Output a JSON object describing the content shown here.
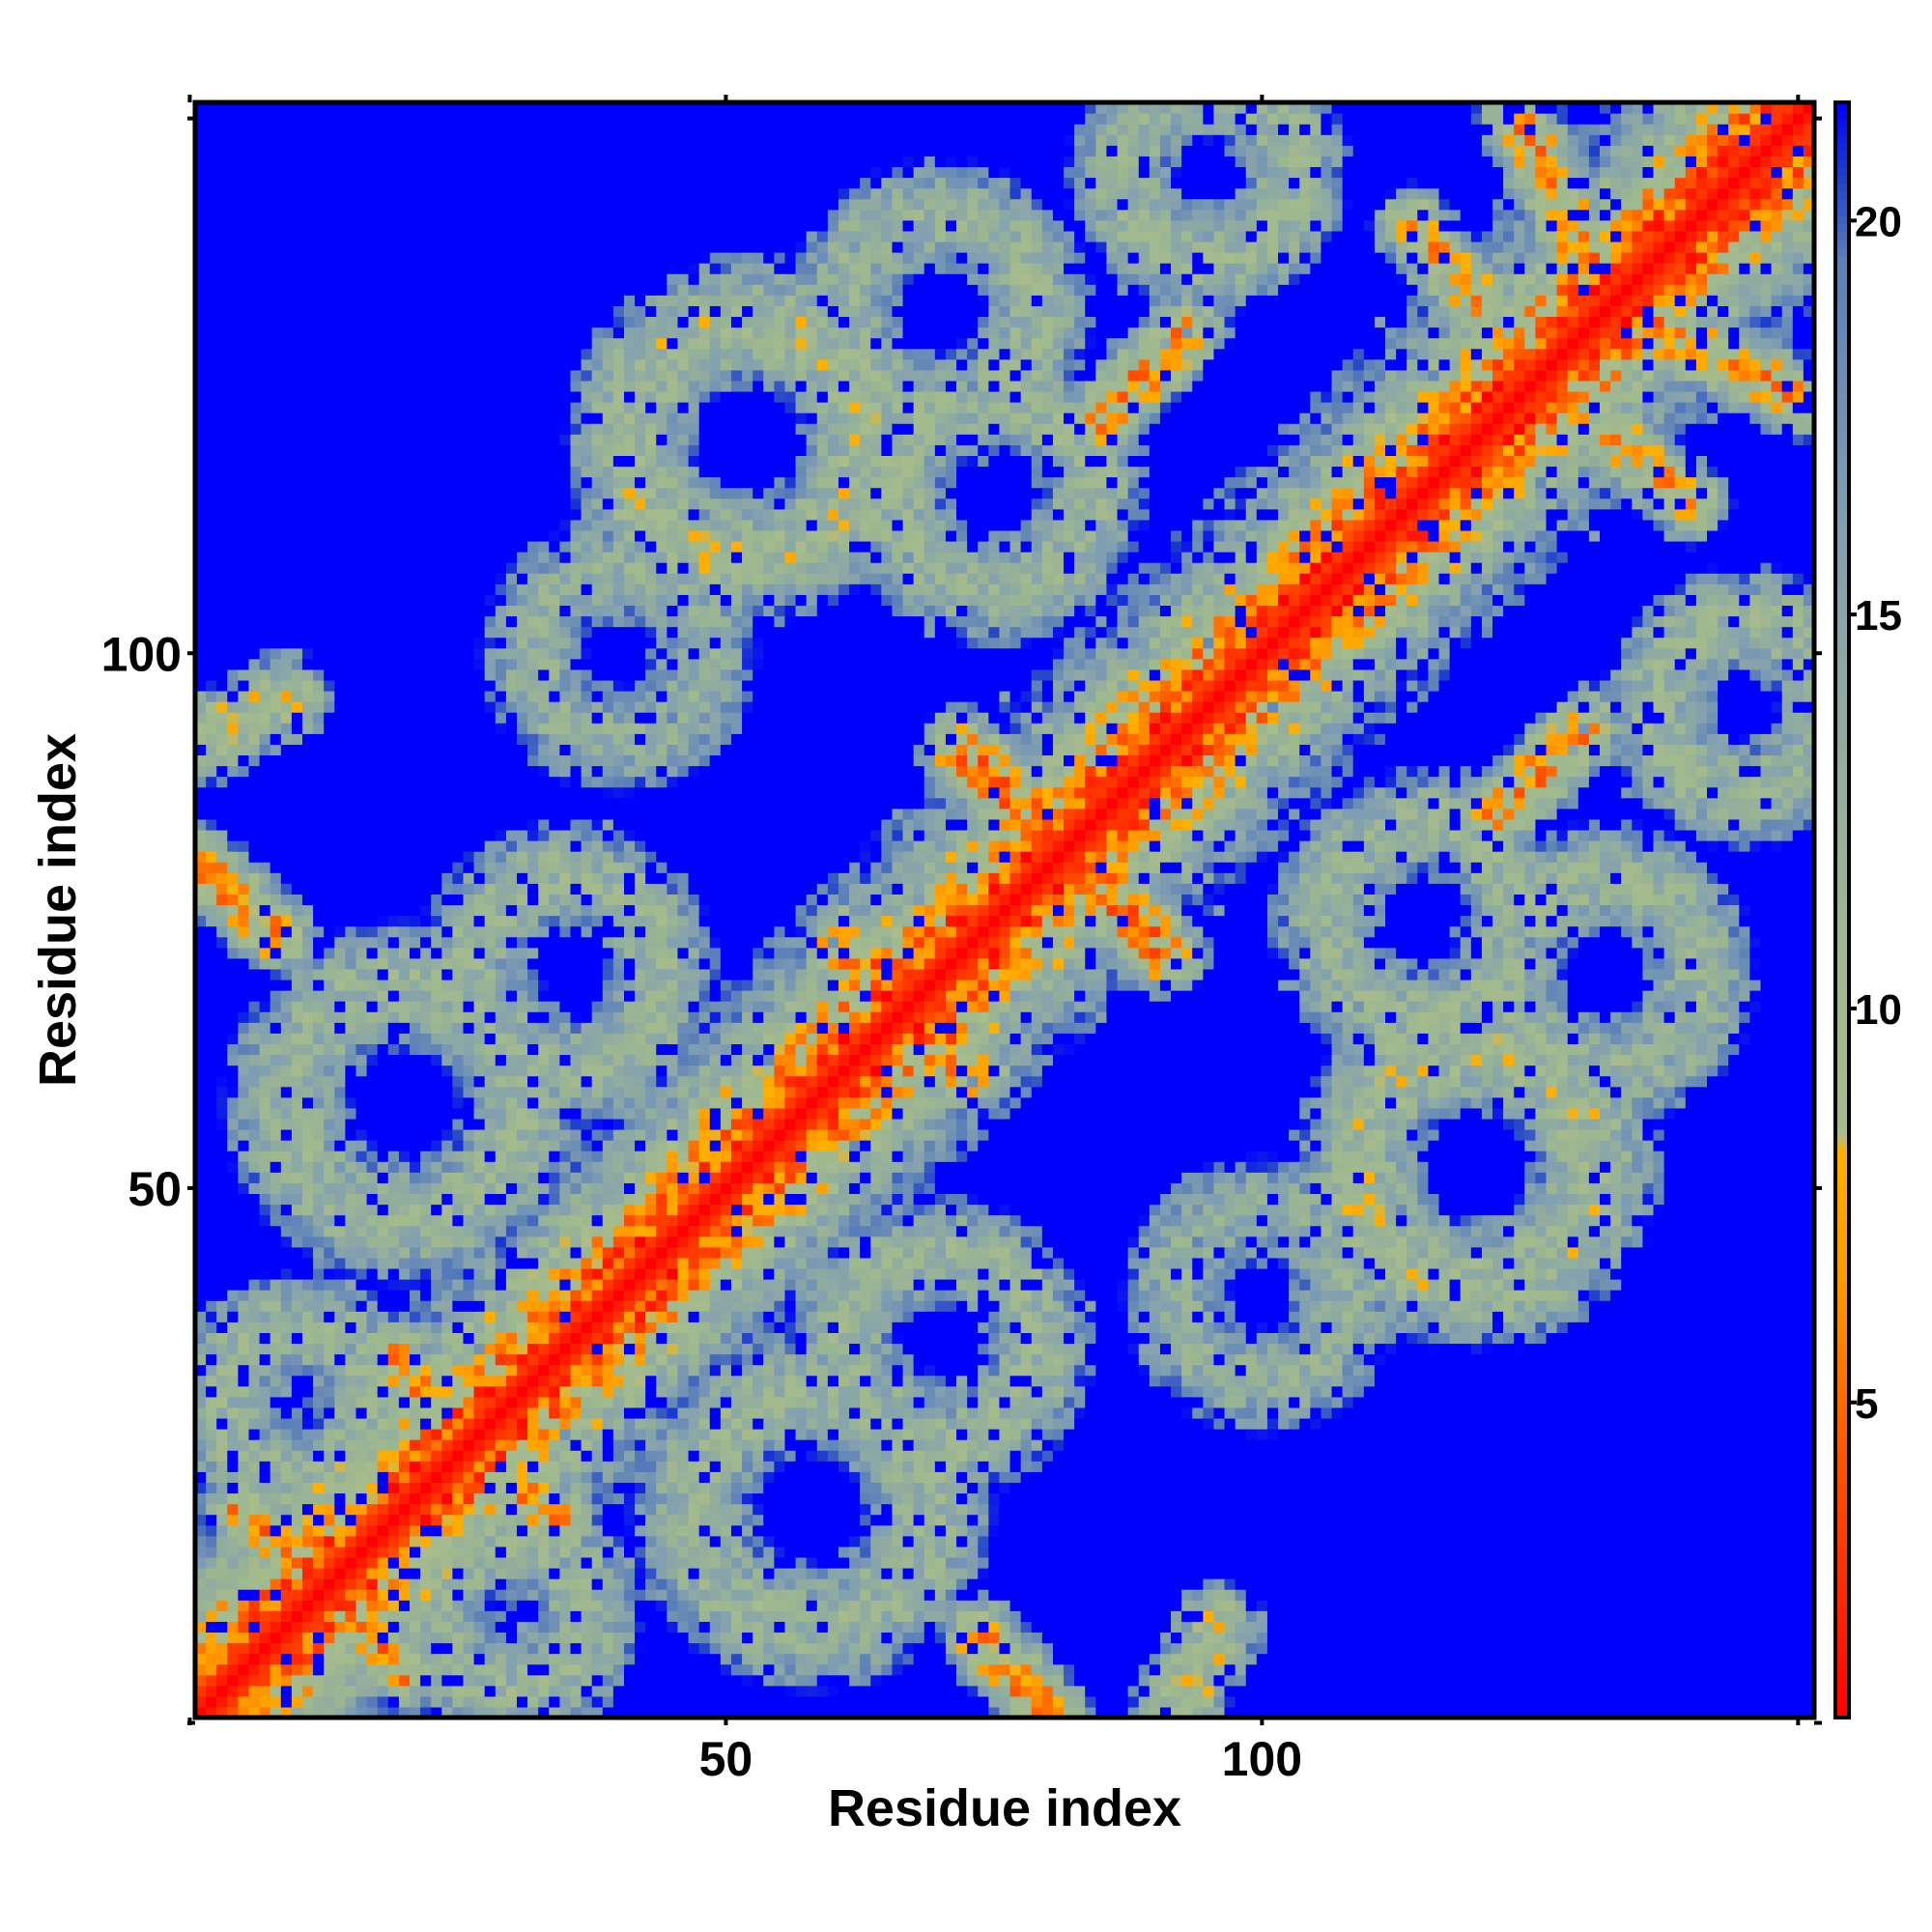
{
  "chart_data": {
    "type": "heatmap",
    "title": "",
    "xlabel": "Residue index",
    "ylabel": "Residue index",
    "n_residues": 151,
    "xlim": [
      0.5,
      151.5
    ],
    "ylim": [
      0.5,
      151.5
    ],
    "x_ticks": [
      50,
      100
    ],
    "y_ticks": [
      50,
      100
    ],
    "colorbar": {
      "min": 1,
      "max": 21.5,
      "ticks": [
        5,
        10,
        15,
        20
      ],
      "stops": [
        {
          "value": 1,
          "color": "#ff0000"
        },
        {
          "value": 4.5,
          "color": "#ff5a00"
        },
        {
          "value": 6.5,
          "color": "#ff9800"
        },
        {
          "value": 8.2,
          "color": "#ffb000"
        },
        {
          "value": 8.4,
          "color": "#a8bc8c"
        },
        {
          "value": 11,
          "color": "#9db790"
        },
        {
          "value": 16,
          "color": "#83a0b0"
        },
        {
          "value": 19.5,
          "color": "#5b7fb8"
        },
        {
          "value": 20.6,
          "color": "#1d3dcc"
        },
        {
          "value": 21.5,
          "color": "#0000ff"
        }
      ]
    },
    "cap_value": 21,
    "features": [
      {
        "kind": "band",
        "p": [
          1,
          1
        ],
        "q": [
          151,
          151
        ],
        "value": 1,
        "sigma": 0.8
      },
      {
        "kind": "band",
        "p": [
          40,
          40
        ],
        "q": [
          57,
          57
        ],
        "value": 5,
        "sigma": 3.2
      },
      {
        "kind": "band",
        "p": [
          96,
          96
        ],
        "q": [
          117,
          117
        ],
        "value": 5,
        "sigma": 3.2
      },
      {
        "kind": "band",
        "p": [
          72,
          91
        ],
        "q": [
          93,
          72
        ],
        "value": 6,
        "sigma": 1.4
      },
      {
        "kind": "band",
        "p": [
          61,
          73
        ],
        "q": [
          71,
          63
        ],
        "value": 6,
        "sigma": 1.4
      },
      {
        "kind": "band",
        "p": [
          5,
          20
        ],
        "q": [
          12,
          12
        ],
        "value": 7,
        "sigma": 1.4
      },
      {
        "kind": "band",
        "p": [
          12,
          12
        ],
        "q": [
          20,
          4
        ],
        "value": 7,
        "sigma": 1.4
      },
      {
        "kind": "band",
        "p": [
          19,
          34
        ],
        "q": [
          34,
          20
        ],
        "value": 7,
        "sigma": 1.4
      },
      {
        "kind": "band",
        "p": [
          1,
          80
        ],
        "q": [
          8,
          74
        ],
        "value": 7,
        "sigma": 1.4
      },
      {
        "kind": "band",
        "p": [
          74,
          8
        ],
        "q": [
          81,
          1
        ],
        "value": 7,
        "sigma": 1.4
      },
      {
        "kind": "band",
        "p": [
          85,
          122
        ],
        "q": [
          93,
          130
        ],
        "value": 7,
        "sigma": 1.4
      },
      {
        "kind": "band",
        "p": [
          122,
          85
        ],
        "q": [
          130,
          93
        ],
        "value": 7,
        "sigma": 1.4
      },
      {
        "kind": "band",
        "p": [
          124,
          150
        ],
        "q": [
          132,
          133
        ],
        "value": 7,
        "sigma": 1.4
      },
      {
        "kind": "band",
        "p": [
          133,
          132
        ],
        "q": [
          150,
          124
        ],
        "value": 7,
        "sigma": 1.4
      },
      {
        "kind": "band",
        "p": [
          114,
          140
        ],
        "q": [
          121,
          132
        ],
        "value": 8,
        "sigma": 1.4
      },
      {
        "kind": "band",
        "p": [
          1,
          92
        ],
        "q": [
          9,
          96
        ],
        "value": 10,
        "sigma": 1.8
      },
      {
        "kind": "band",
        "p": [
          90,
          9
        ],
        "q": [
          95,
          1
        ],
        "value": 10,
        "sigma": 1.8
      },
      {
        "kind": "arc",
        "c": [
          52,
          120
        ],
        "r": 11,
        "value": 11,
        "w": 4
      },
      {
        "kind": "arc",
        "c": [
          70,
          132
        ],
        "r": 9,
        "value": 12,
        "w": 3.5
      },
      {
        "kind": "arc",
        "c": [
          115,
          60
        ],
        "r": 11,
        "value": 11,
        "w": 4
      },
      {
        "kind": "arc",
        "c": [
          138,
          111
        ],
        "r": 10,
        "value": 12,
        "w": 3.5
      },
      {
        "kind": "arc",
        "c": [
          95,
          145
        ],
        "r": 8,
        "value": 12,
        "w": 3.5
      },
      {
        "kind": "arc",
        "c": [
          137,
          80
        ],
        "r": 8,
        "value": 12,
        "w": 3.5
      },
      {
        "kind": "arc",
        "c": [
          20,
          58
        ],
        "r": 11,
        "value": 12,
        "w": 4
      },
      {
        "kind": "arc",
        "c": [
          58,
          20
        ],
        "r": 11,
        "value": 12,
        "w": 4
      },
      {
        "kind": "arc",
        "c": [
          35,
          70
        ],
        "r": 9,
        "value": 12,
        "w": 3.5
      },
      {
        "kind": "arc",
        "c": [
          70,
          35
        ],
        "r": 9,
        "value": 12,
        "w": 3.5
      },
      {
        "kind": "arc",
        "c": [
          75,
          115
        ],
        "r": 9,
        "value": 12,
        "w": 3.5
      },
      {
        "kind": "arc",
        "c": [
          115,
          75
        ],
        "r": 9,
        "value": 12,
        "w": 3.5
      },
      {
        "kind": "arc",
        "c": [
          10,
          30
        ],
        "r": 7,
        "value": 12,
        "w": 3.5
      },
      {
        "kind": "arc",
        "c": [
          30,
          10
        ],
        "r": 7,
        "value": 12,
        "w": 3.5
      },
      {
        "kind": "arc",
        "c": [
          100,
          40
        ],
        "r": 8,
        "value": 13,
        "w": 3.5
      },
      {
        "kind": "arc",
        "c": [
          40,
          100
        ],
        "r": 8,
        "value": 13,
        "w": 3.5
      }
    ],
    "noise": {
      "seed": 20240611,
      "amount": 3.5,
      "speckle_rate": 0.09
    }
  }
}
